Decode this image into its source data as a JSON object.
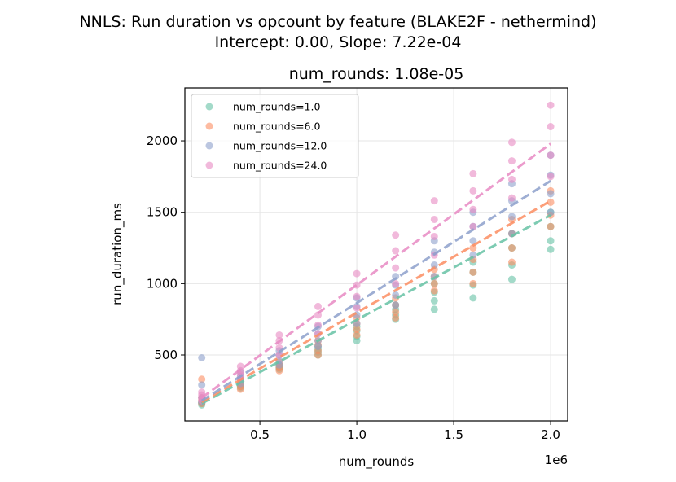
{
  "chart_data": {
    "type": "scatter",
    "title": "NNLS: Run duration vs opcount by feature (BLAKE2F - nethermind)",
    "subtitle": "Intercept: 0.00, Slope: 7.22e-04",
    "axes_title": "num_rounds: 1.08e-05",
    "xlabel": "num_rounds",
    "ylabel": "run_duration_ms",
    "x_offset_label": "1e6",
    "xlim": [
      113000,
      2088000
    ],
    "ylim": [
      38,
      2371
    ],
    "xticks": [
      500000,
      1000000,
      1500000,
      2000000
    ],
    "xtick_labels": [
      "0.5",
      "1.0",
      "1.5",
      "2.0"
    ],
    "yticks": [
      500,
      1000,
      1500,
      2000
    ],
    "ytick_labels": [
      "500",
      "1000",
      "1500",
      "2000"
    ],
    "grid": true,
    "legend_placement": "top-left",
    "x": [
      200000,
      400000,
      600000,
      800000,
      1000000,
      1200000,
      1400000,
      1600000,
      1800000,
      2000000
    ],
    "series": [
      {
        "name": "num_rounds=1.0",
        "color": "#66c2a5",
        "points": [
          [
            150,
            160,
            165,
            170
          ],
          [
            270,
            280,
            290,
            300
          ],
          [
            400,
            410,
            420,
            430
          ],
          [
            500,
            520,
            540,
            560
          ],
          [
            600,
            630,
            670,
            700
          ],
          [
            750,
            780,
            820,
            850
          ],
          [
            820,
            880,
            940,
            1000
          ],
          [
            900,
            990,
            1080,
            1150
          ],
          [
            1030,
            1130,
            1250,
            1350
          ],
          [
            1240,
            1300,
            1400,
            1500
          ]
        ],
        "fit": [
          160,
          1480
        ]
      },
      {
        "name": "num_rounds=6.0",
        "color": "#fc8d62",
        "points": [
          [
            160,
            180,
            200,
            330
          ],
          [
            260,
            280,
            300,
            330
          ],
          [
            390,
            410,
            430,
            450
          ],
          [
            500,
            530,
            570,
            600
          ],
          [
            640,
            680,
            720,
            760
          ],
          [
            760,
            800,
            850,
            900
          ],
          [
            950,
            1000,
            1050,
            1100
          ],
          [
            1000,
            1080,
            1170,
            1250
          ],
          [
            1150,
            1250,
            1350,
            1450
          ],
          [
            1400,
            1480,
            1570,
            1650
          ]
        ],
        "fit": [
          170,
          1580
        ]
      },
      {
        "name": "num_rounds=12.0",
        "color": "#8da0cb",
        "points": [
          [
            170,
            200,
            290,
            480
          ],
          [
            300,
            330,
            350,
            380
          ],
          [
            430,
            460,
            500,
            530
          ],
          [
            560,
            600,
            650,
            700
          ],
          [
            720,
            780,
            840,
            900
          ],
          [
            850,
            920,
            990,
            1050
          ],
          [
            1050,
            1130,
            1220,
            1300
          ],
          [
            1200,
            1300,
            1400,
            1500
          ],
          [
            1350,
            1470,
            1580,
            1700
          ],
          [
            1500,
            1630,
            1760,
            1900
          ]
        ],
        "fit": [
          180,
          1720
        ]
      },
      {
        "name": "num_rounds=24.0",
        "color": "#e78ac3",
        "points": [
          [
            180,
            200,
            220,
            240
          ],
          [
            330,
            360,
            390,
            420
          ],
          [
            500,
            550,
            600,
            640
          ],
          [
            650,
            710,
            780,
            840
          ],
          [
            830,
            910,
            990,
            1070
          ],
          [
            1000,
            1110,
            1230,
            1340
          ],
          [
            1200,
            1330,
            1450,
            1580
          ],
          [
            1400,
            1520,
            1650,
            1770
          ],
          [
            1600,
            1730,
            1860,
            1990
          ],
          [
            1750,
            1900,
            2100,
            2250
          ]
        ],
        "fit": [
          200,
          1980
        ]
      }
    ]
  }
}
